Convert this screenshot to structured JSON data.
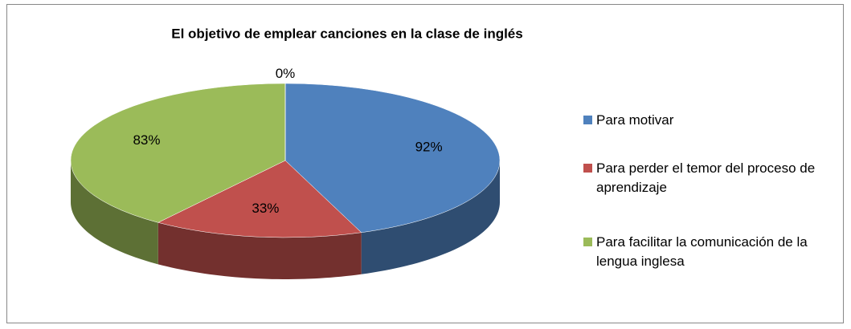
{
  "chart_data": {
    "type": "pie3d",
    "title": "El objetivo de emplear canciones en la clase de inglés",
    "categories": [
      "Para motivar",
      "Para perder el temor del proceso de aprendizaje",
      "Para facilitar la comunicación de la lengua inglesa",
      null
    ],
    "values": [
      92,
      33,
      83,
      0
    ],
    "value_labels": [
      "92%",
      "33%",
      "83%",
      "0%"
    ],
    "colors": [
      "#4f81bd",
      "#c0504d",
      "#9bbb59",
      "#8064a2"
    ],
    "legend": "right"
  }
}
